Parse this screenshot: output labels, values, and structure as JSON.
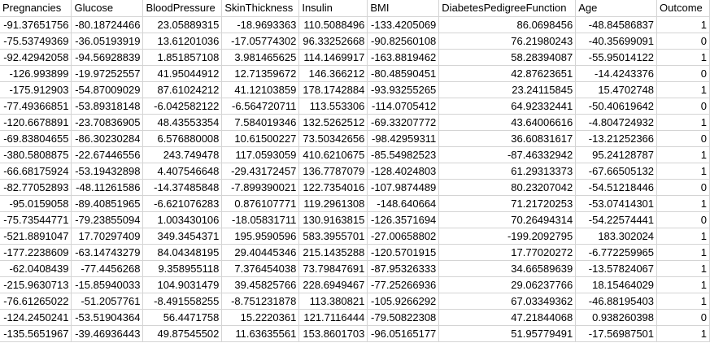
{
  "spreadsheet": {
    "columns": [
      "Pregnancies",
      "Glucose",
      "BloodPressure",
      "SkinThickness",
      "Insulin",
      "BMI",
      "DiabetesPedigreeFunction",
      "Age",
      "Outcome"
    ],
    "rows": [
      [
        "-91.37651756",
        "-80.18724466",
        "23.05889315",
        "-18.9693363",
        "110.5088496",
        "-133.4205069",
        "86.0698456",
        "-48.84586837",
        "1"
      ],
      [
        "-75.53749369",
        "-36.05193919",
        "13.61201036",
        "-17.05774302",
        "96.33252668",
        "-90.82560108",
        "76.21980243",
        "-40.35699091",
        "0"
      ],
      [
        "-92.42942058",
        "-94.56928839",
        "1.851857108",
        "3.981465625",
        "114.1469917",
        "-163.8819462",
        "58.28394087",
        "-55.95014122",
        "1"
      ],
      [
        "-126.993899",
        "-19.97252557",
        "41.95044912",
        "12.71359672",
        "146.366212",
        "-80.48590451",
        "42.87623651",
        "-14.4243376",
        "0"
      ],
      [
        "-175.912903",
        "-54.87009029",
        "87.61024212",
        "41.12103859",
        "178.1742884",
        "-93.93255265",
        "23.24115845",
        "15.4702748",
        "1"
      ],
      [
        "-77.49366851",
        "-53.89318148",
        "-6.042582122",
        "-6.564720711",
        "113.553306",
        "-114.0705412",
        "64.92332441",
        "-50.40619642",
        "0"
      ],
      [
        "-120.6678891",
        "-23.70836905",
        "48.43553354",
        "7.584019346",
        "132.5262512",
        "-69.33207772",
        "43.64006616",
        "-4.804724932",
        "1"
      ],
      [
        "-69.83804655",
        "-86.30230284",
        "6.576880008",
        "10.61500227",
        "73.50342656",
        "-98.42959311",
        "36.60831617",
        "-13.21252366",
        "0"
      ],
      [
        "-380.5808875",
        "-22.67446556",
        "243.749478",
        "117.0593059",
        "410.6210675",
        "-85.54982523",
        "-87.46332942",
        "95.24128787",
        "1"
      ],
      [
        "-66.68175924",
        "-53.19432898",
        "4.407546648",
        "-29.43172457",
        "136.7787079",
        "-128.4024803",
        "61.29313373",
        "-67.66505132",
        "1"
      ],
      [
        "-82.77052893",
        "-48.11261586",
        "-14.37485848",
        "-7.899390021",
        "122.7354016",
        "-107.9874489",
        "80.23207042",
        "-54.51218446",
        "0"
      ],
      [
        "-95.0159058",
        "-89.40851965",
        "-6.621076283",
        "0.876107771",
        "119.2961308",
        "-148.640664",
        "71.21720253",
        "-53.07414301",
        "1"
      ],
      [
        "-75.73544771",
        "-79.23855094",
        "1.003430106",
        "-18.05831711",
        "130.9163815",
        "-126.3571694",
        "70.26494314",
        "-54.22574441",
        "0"
      ],
      [
        "-521.8891047",
        "17.70297409",
        "349.3454371",
        "195.9590596",
        "583.3955701",
        "-27.00658802",
        "-199.2092795",
        "183.302024",
        "1"
      ],
      [
        "-177.2238609",
        "-63.14743279",
        "84.04348195",
        "29.40445346",
        "215.1435288",
        "-120.5701915",
        "17.77020272",
        "-6.772259965",
        "1"
      ],
      [
        "-62.0408439",
        "-77.4456268",
        "9.358955118",
        "7.376454038",
        "73.79847691",
        "-87.95326333",
        "34.66589639",
        "-13.57824067",
        "1"
      ],
      [
        "-215.9630713",
        "-15.85940033",
        "104.9031479",
        "39.45825766",
        "228.6949467",
        "-77.25266936",
        "29.06237766",
        "18.15464029",
        "1"
      ],
      [
        "-76.61265022",
        "-51.2057761",
        "-8.491558255",
        "-8.751231878",
        "113.380821",
        "-105.9266292",
        "67.03349362",
        "-46.88195403",
        "1"
      ],
      [
        "-124.2450241",
        "-53.51904364",
        "56.4471758",
        "15.2220361",
        "121.7116444",
        "-79.50822308",
        "47.21844068",
        "0.938260398",
        "0"
      ],
      [
        "-135.5651967",
        "-39.46936443",
        "49.87545502",
        "11.63635561",
        "153.8601703",
        "-96.05165177",
        "51.95779491",
        "-17.56987501",
        "1"
      ]
    ]
  }
}
